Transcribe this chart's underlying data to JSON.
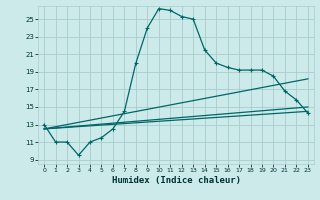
{
  "xlabel": "Humidex (Indice chaleur)",
  "bg_color": "#cceaea",
  "grid_color": "#aacccc",
  "line_color": "#006666",
  "xlim": [
    -0.5,
    23.5
  ],
  "ylim": [
    8.5,
    26.5
  ],
  "yticks": [
    9,
    11,
    13,
    15,
    17,
    19,
    21,
    23,
    25
  ],
  "xticks": [
    0,
    1,
    2,
    3,
    4,
    5,
    6,
    7,
    8,
    9,
    10,
    11,
    12,
    13,
    14,
    15,
    16,
    17,
    18,
    19,
    20,
    21,
    22,
    23
  ],
  "series1_x": [
    0,
    1,
    2,
    3,
    4,
    5,
    6,
    7,
    8,
    9,
    10,
    11,
    12,
    13,
    14,
    15,
    16,
    17,
    18,
    19,
    20,
    21,
    22,
    23
  ],
  "series1_y": [
    13,
    11,
    11,
    9.5,
    11,
    11.5,
    12.5,
    14.5,
    20,
    24,
    26.2,
    26.0,
    25.3,
    25.0,
    21.5,
    20.0,
    19.5,
    19.2,
    19.2,
    19.2,
    18.5,
    16.8,
    15.8,
    14.3
  ],
  "series2_x": [
    0,
    23
  ],
  "series2_y": [
    12.5,
    18.2
  ],
  "series3_x": [
    0,
    23
  ],
  "series3_y": [
    12.5,
    15.0
  ],
  "series4_x": [
    0,
    23
  ],
  "series4_y": [
    12.5,
    14.5
  ]
}
